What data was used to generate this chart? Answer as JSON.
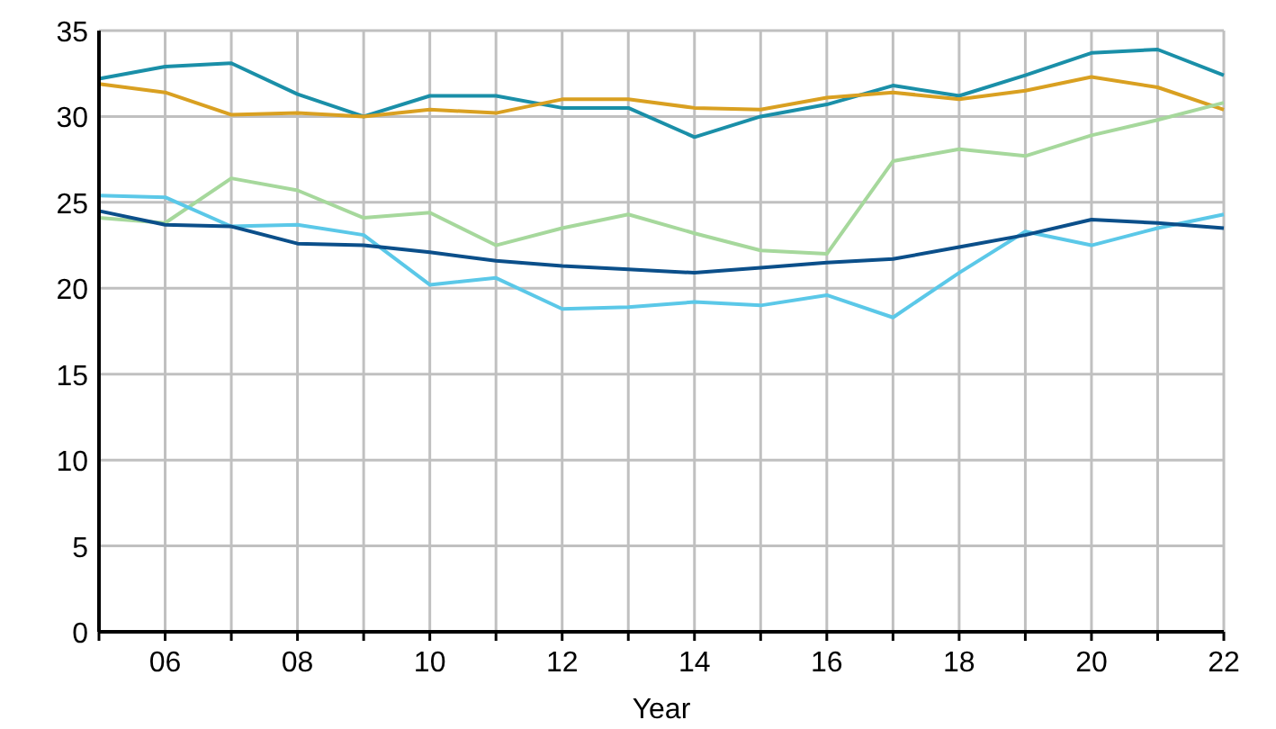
{
  "chart_data": {
    "type": "line",
    "xlabel": "Year",
    "x": [
      2005,
      2006,
      2007,
      2008,
      2009,
      2010,
      2011,
      2012,
      2013,
      2014,
      2015,
      2016,
      2017,
      2018,
      2019,
      2020,
      2021,
      2022
    ],
    "xlim": [
      2005,
      2022
    ],
    "xticks": [
      {
        "value": 2005,
        "label": null
      },
      {
        "value": 2006,
        "label": "06"
      },
      {
        "value": 2007,
        "label": null
      },
      {
        "value": 2008,
        "label": "08"
      },
      {
        "value": 2009,
        "label": null
      },
      {
        "value": 2010,
        "label": "10"
      },
      {
        "value": 2011,
        "label": null
      },
      {
        "value": 2012,
        "label": "12"
      },
      {
        "value": 2013,
        "label": null
      },
      {
        "value": 2014,
        "label": "14"
      },
      {
        "value": 2015,
        "label": null
      },
      {
        "value": 2016,
        "label": "16"
      },
      {
        "value": 2017,
        "label": null
      },
      {
        "value": 2018,
        "label": "18"
      },
      {
        "value": 2019,
        "label": null
      },
      {
        "value": 2020,
        "label": "20"
      },
      {
        "value": 2021,
        "label": null
      },
      {
        "value": 2022,
        "label": "22"
      }
    ],
    "ylim": [
      0,
      35
    ],
    "yticks": [
      0,
      5,
      10,
      15,
      20,
      25,
      30,
      35
    ],
    "grid": true,
    "marker": "none",
    "line_style": "solid",
    "series": [
      {
        "color": "#1a8fa8",
        "values": [
          32.2,
          32.9,
          33.1,
          31.3,
          30.0,
          31.2,
          31.2,
          30.5,
          30.5,
          28.8,
          30.0,
          30.7,
          31.8,
          31.2,
          32.4,
          33.7,
          33.9,
          32.4
        ]
      },
      {
        "color": "#d9a021",
        "values": [
          31.9,
          31.4,
          30.1,
          30.2,
          30.0,
          30.4,
          30.2,
          31.0,
          31.0,
          30.5,
          30.4,
          31.1,
          31.4,
          31.0,
          31.5,
          32.3,
          31.7,
          30.4
        ]
      },
      {
        "color": "#a6d89c",
        "values": [
          24.1,
          23.8,
          26.4,
          25.7,
          24.1,
          24.4,
          22.5,
          23.5,
          24.3,
          23.2,
          22.2,
          22.0,
          27.4,
          28.1,
          27.7,
          28.9,
          29.8,
          30.8
        ]
      },
      {
        "color": "#5bc8e8",
        "values": [
          25.4,
          25.3,
          23.6,
          23.7,
          23.1,
          20.2,
          20.6,
          18.8,
          18.9,
          19.2,
          19.0,
          19.6,
          18.3,
          20.9,
          23.3,
          22.5,
          23.5,
          24.3
        ]
      },
      {
        "color": "#0b4f8a",
        "values": [
          24.5,
          23.7,
          23.6,
          22.6,
          22.5,
          22.1,
          21.6,
          21.3,
          21.1,
          20.9,
          21.2,
          21.5,
          21.7,
          22.4,
          23.1,
          24.0,
          23.8,
          23.5
        ]
      }
    ]
  }
}
